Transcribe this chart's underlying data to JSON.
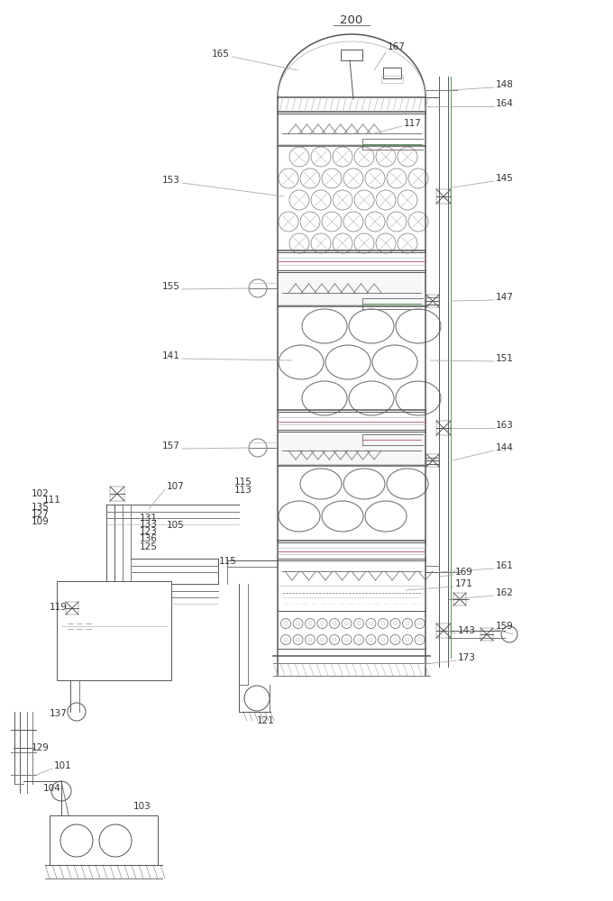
{
  "fig_width": 6.8,
  "fig_height": 10.0,
  "dpi": 100,
  "bg_color": "#ffffff",
  "lc": "#aaaaaa",
  "dc": "#777777",
  "dk": "#555555",
  "pink": "#bb6688",
  "green": "#559955",
  "label_fs": 7.5
}
